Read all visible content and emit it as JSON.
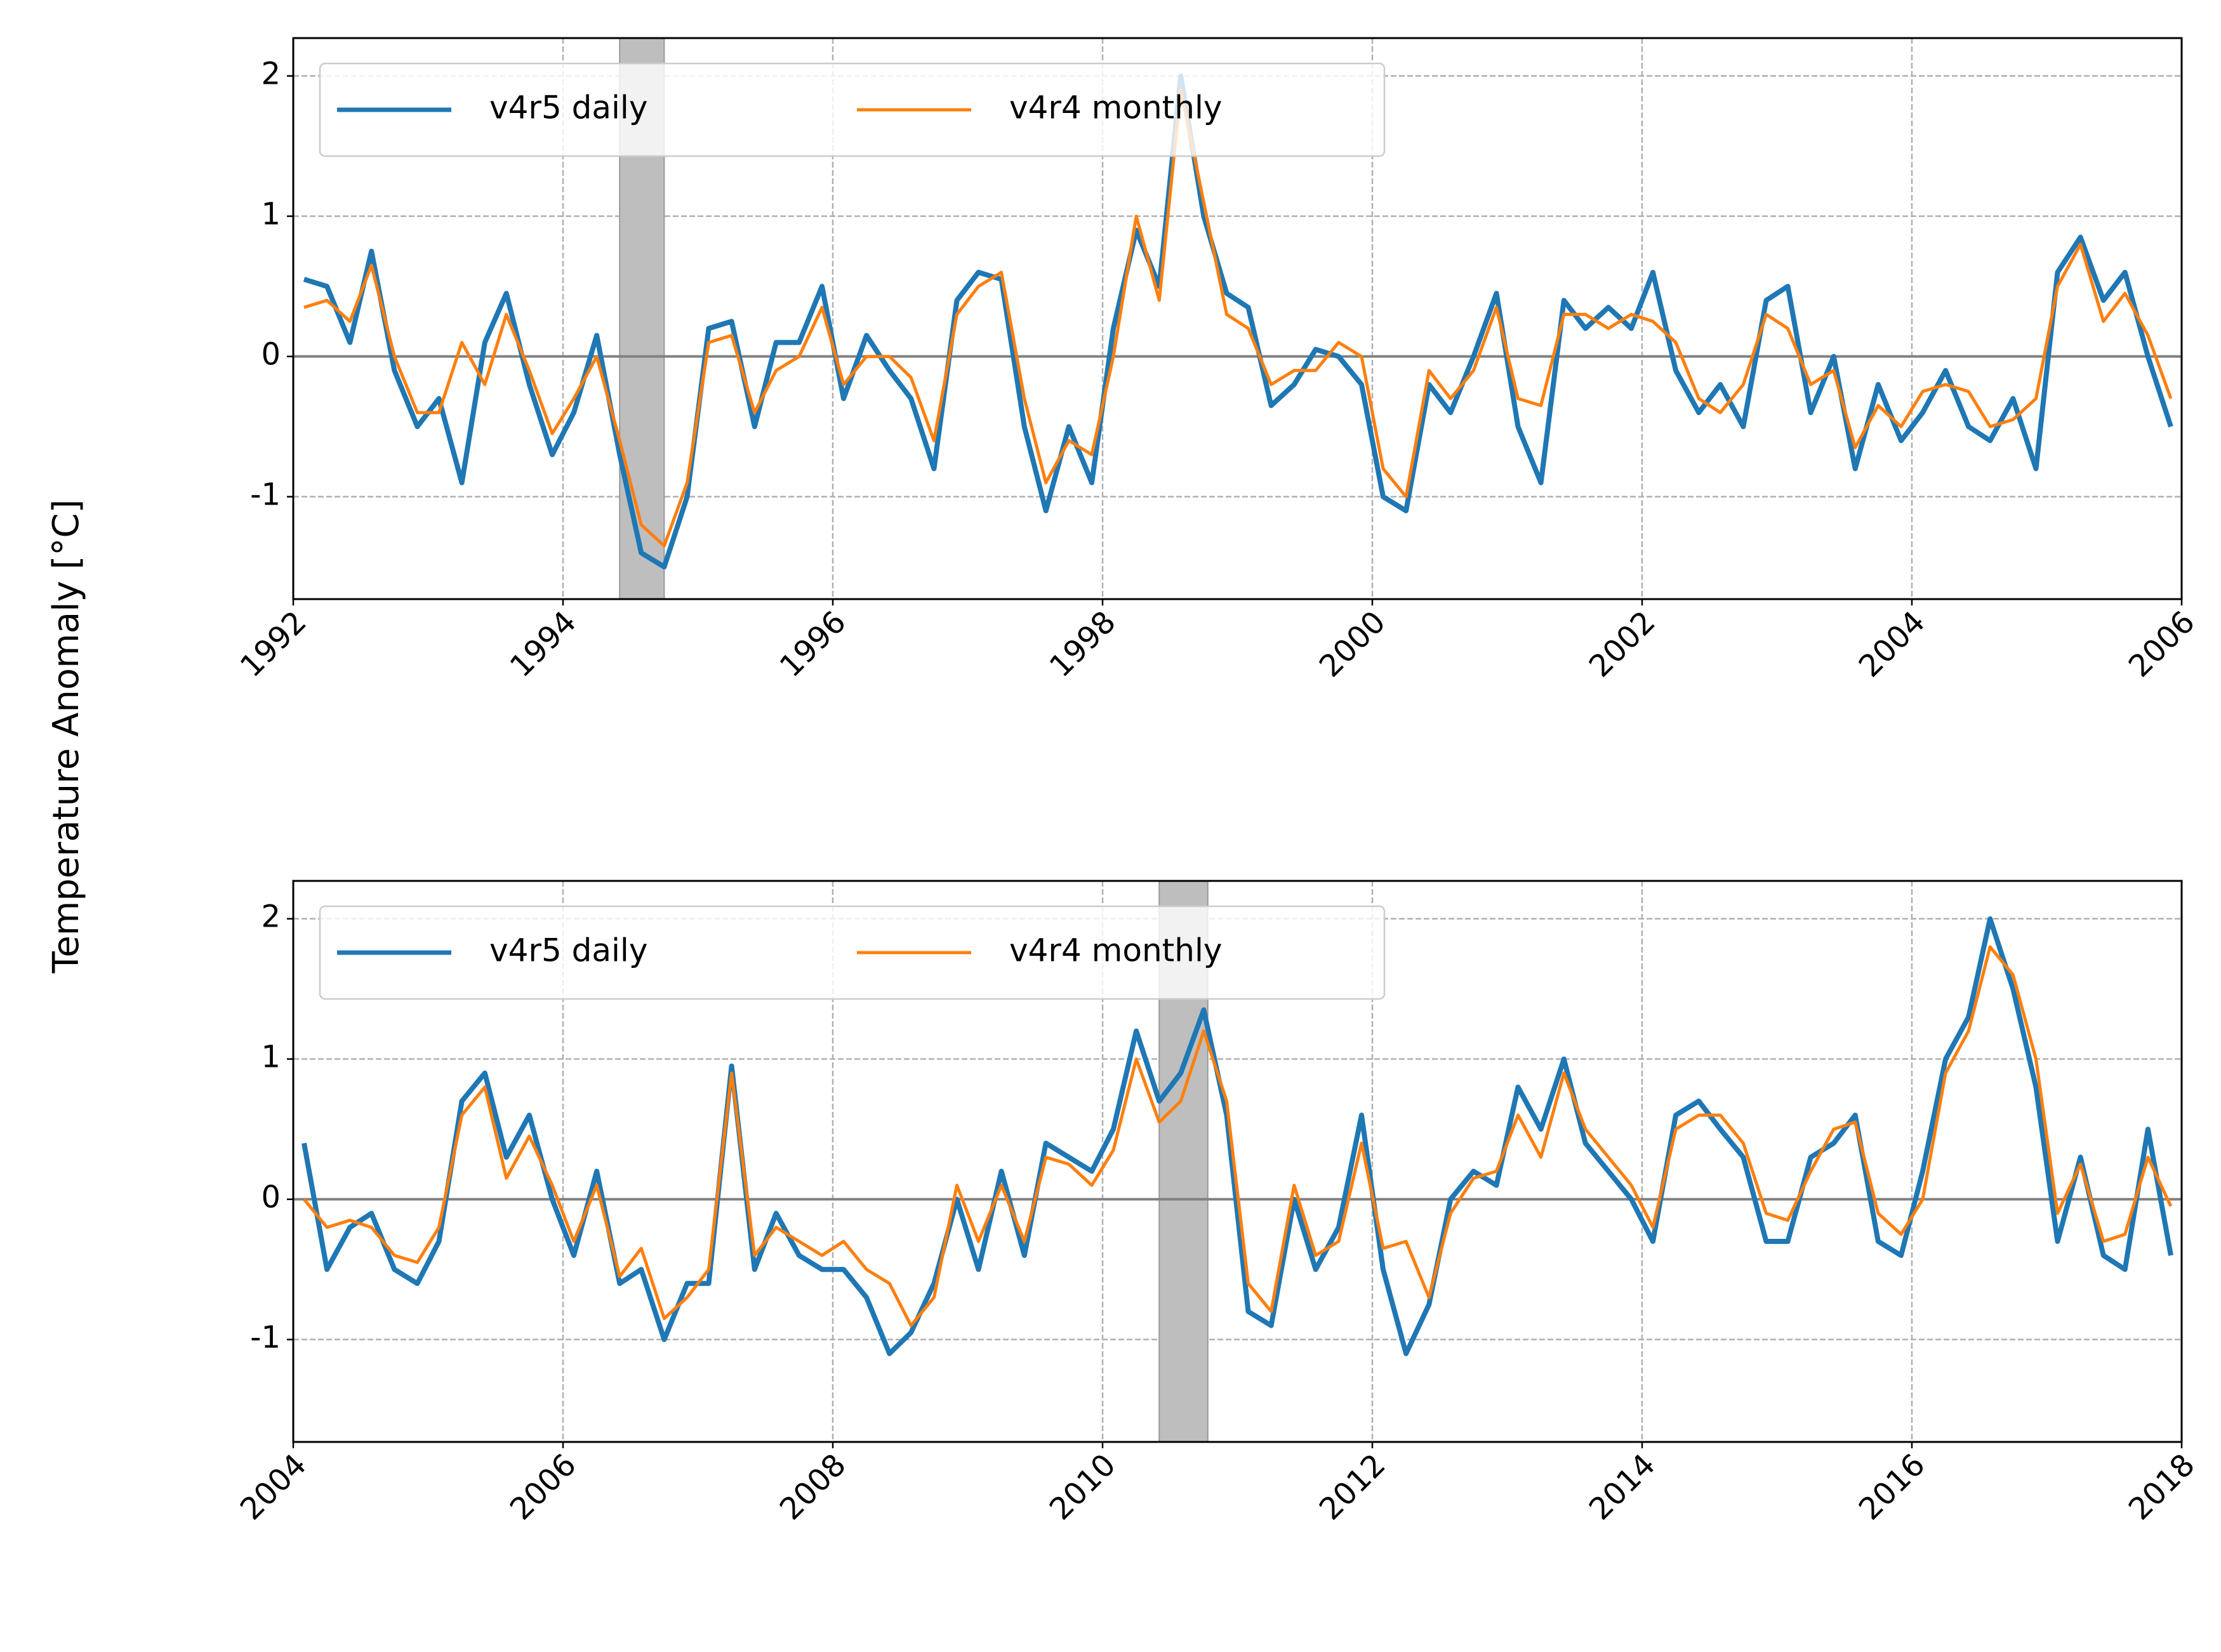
{
  "chart_data": [
    {
      "type": "line",
      "ylabel": "Temperature Anomaly [°C]",
      "x": [
        1992.08,
        1992.25,
        1992.42,
        1992.58,
        1992.75,
        1992.92,
        1993.08,
        1993.25,
        1993.42,
        1993.58,
        1993.75,
        1993.92,
        1994.08,
        1994.25,
        1994.42,
        1994.58,
        1994.75,
        1994.92,
        1995.08,
        1995.25,
        1995.42,
        1995.58,
        1995.75,
        1995.92,
        1996.08,
        1996.25,
        1996.42,
        1996.58,
        1996.75,
        1996.92,
        1997.08,
        1997.25,
        1997.42,
        1997.58,
        1997.75,
        1997.92,
        1998.08,
        1998.25,
        1998.42,
        1998.58,
        1998.75,
        1998.92,
        1999.08,
        1999.25,
        1999.42,
        1999.58,
        1999.75,
        1999.92,
        2000.08,
        2000.25,
        2000.42,
        2000.58,
        2000.75,
        2000.92,
        2001.08,
        2001.25,
        2001.42,
        2001.58,
        2001.75,
        2001.92,
        2002.08,
        2002.25,
        2002.42,
        2002.58,
        2002.75,
        2002.92,
        2003.08,
        2003.25,
        2003.42,
        2003.58,
        2003.75,
        2003.92,
        2004.08,
        2004.25,
        2004.42,
        2004.58,
        2004.75,
        2004.92,
        2005.08,
        2005.25,
        2005.42,
        2005.58,
        2005.75,
        2005.92
      ],
      "series": [
        {
          "name": "v4r5 daily",
          "color": "#1f77b4",
          "values": [
            0.55,
            0.5,
            0.1,
            0.75,
            -0.1,
            -0.5,
            -0.3,
            -0.9,
            0.1,
            0.45,
            -0.2,
            -0.7,
            -0.4,
            0.15,
            -0.7,
            -1.4,
            -1.5,
            -1.0,
            0.2,
            0.25,
            -0.5,
            0.1,
            0.1,
            0.5,
            -0.3,
            0.15,
            -0.1,
            -0.3,
            -0.8,
            0.4,
            0.6,
            0.55,
            -0.5,
            -1.1,
            -0.5,
            -0.9,
            0.2,
            0.9,
            0.5,
            2.0,
            1.0,
            0.45,
            0.35,
            -0.35,
            -0.2,
            0.05,
            0.0,
            -0.2,
            -1.0,
            -1.1,
            -0.2,
            -0.4,
            0.0,
            0.45,
            -0.5,
            -0.9,
            0.4,
            0.2,
            0.35,
            0.2,
            0.6,
            -0.1,
            -0.4,
            -0.2,
            -0.5,
            0.4,
            0.5,
            -0.4,
            0.0,
            -0.8,
            -0.2,
            -0.6,
            -0.4,
            -0.1,
            -0.5,
            -0.6,
            -0.3,
            -0.8,
            0.6,
            0.85,
            0.4,
            0.6,
            0.0,
            -0.5
          ]
        },
        {
          "name": "v4r4 monthly",
          "color": "#ff7f0e",
          "values": [
            0.35,
            0.4,
            0.25,
            0.65,
            0.0,
            -0.4,
            -0.4,
            0.1,
            -0.2,
            0.3,
            -0.1,
            -0.55,
            -0.3,
            0.0,
            -0.6,
            -1.2,
            -1.35,
            -0.9,
            0.1,
            0.15,
            -0.4,
            -0.1,
            0.0,
            0.35,
            -0.2,
            0.0,
            0.0,
            -0.15,
            -0.6,
            0.3,
            0.5,
            0.6,
            -0.3,
            -0.9,
            -0.6,
            -0.7,
            0.0,
            1.0,
            0.4,
            1.9,
            1.1,
            0.3,
            0.2,
            -0.2,
            -0.1,
            -0.1,
            0.1,
            0.0,
            -0.8,
            -1.0,
            -0.1,
            -0.3,
            -0.1,
            0.35,
            -0.3,
            -0.35,
            0.3,
            0.3,
            0.2,
            0.3,
            0.25,
            0.1,
            -0.3,
            -0.4,
            -0.2,
            0.3,
            0.2,
            -0.2,
            -0.1,
            -0.65,
            -0.35,
            -0.5,
            -0.25,
            -0.2,
            -0.25,
            -0.5,
            -0.45,
            -0.3,
            0.5,
            0.8,
            0.25,
            0.45,
            0.15,
            -0.3
          ]
        }
      ],
      "shade": [
        1994.42,
        1994.75
      ],
      "hline": 0,
      "xlim": [
        1992,
        2006
      ],
      "xticks": [
        1992,
        1994,
        1996,
        1998,
        2000,
        2002,
        2004,
        2006
      ],
      "ylim": [
        -1.73,
        2.27
      ],
      "yticks": [
        -1,
        0,
        1,
        2
      ],
      "grid": true,
      "legend": "upper left"
    },
    {
      "type": "line",
      "x": [
        2004.08,
        2004.25,
        2004.42,
        2004.58,
        2004.75,
        2004.92,
        2005.08,
        2005.25,
        2005.42,
        2005.58,
        2005.75,
        2005.92,
        2006.08,
        2006.25,
        2006.42,
        2006.58,
        2006.75,
        2006.92,
        2007.08,
        2007.25,
        2007.42,
        2007.58,
        2007.75,
        2007.92,
        2008.08,
        2008.25,
        2008.42,
        2008.58,
        2008.75,
        2008.92,
        2009.08,
        2009.25,
        2009.42,
        2009.58,
        2009.75,
        2009.92,
        2010.08,
        2010.25,
        2010.42,
        2010.58,
        2010.75,
        2010.92,
        2011.08,
        2011.25,
        2011.42,
        2011.58,
        2011.75,
        2011.92,
        2012.08,
        2012.25,
        2012.42,
        2012.58,
        2012.75,
        2012.92,
        2013.08,
        2013.25,
        2013.42,
        2013.58,
        2013.75,
        2013.92,
        2014.08,
        2014.25,
        2014.42,
        2014.58,
        2014.75,
        2014.92,
        2015.08,
        2015.25,
        2015.42,
        2015.58,
        2015.75,
        2015.92,
        2016.08,
        2016.25,
        2016.42,
        2016.58,
        2016.75,
        2016.92,
        2017.08,
        2017.25,
        2017.42,
        2017.58,
        2017.75,
        2017.92
      ],
      "series": [
        {
          "name": "v4r5 daily",
          "color": "#1f77b4",
          "values": [
            0.4,
            -0.5,
            -0.2,
            -0.1,
            -0.5,
            -0.6,
            -0.3,
            0.7,
            0.9,
            0.3,
            0.6,
            0.0,
            -0.4,
            0.2,
            -0.6,
            -0.5,
            -1.0,
            -0.6,
            -0.6,
            0.95,
            -0.5,
            -0.1,
            -0.4,
            -0.5,
            -0.5,
            -0.7,
            -1.1,
            -0.95,
            -0.6,
            0.0,
            -0.5,
            0.2,
            -0.4,
            0.4,
            0.3,
            0.2,
            0.5,
            1.2,
            0.7,
            0.9,
            1.35,
            0.6,
            -0.8,
            -0.9,
            0.0,
            -0.5,
            -0.2,
            0.6,
            -0.5,
            -1.1,
            -0.75,
            0.0,
            0.2,
            0.1,
            0.8,
            0.5,
            1.0,
            0.4,
            0.2,
            0.0,
            -0.3,
            0.6,
            0.7,
            0.5,
            0.3,
            -0.3,
            -0.3,
            0.3,
            0.4,
            0.6,
            -0.3,
            -0.4,
            0.2,
            1.0,
            1.3,
            2.0,
            1.5,
            0.8,
            -0.3,
            0.3,
            -0.4,
            -0.5,
            0.5,
            -0.4
          ]
        },
        {
          "name": "v4r4 monthly",
          "color": "#ff7f0e",
          "values": [
            0.0,
            -0.2,
            -0.15,
            -0.2,
            -0.4,
            -0.45,
            -0.2,
            0.6,
            0.8,
            0.15,
            0.45,
            0.1,
            -0.3,
            0.1,
            -0.55,
            -0.35,
            -0.85,
            -0.7,
            -0.5,
            0.9,
            -0.4,
            -0.2,
            -0.3,
            -0.4,
            -0.3,
            -0.5,
            -0.6,
            -0.9,
            -0.7,
            0.1,
            -0.3,
            0.1,
            -0.3,
            0.3,
            0.25,
            0.1,
            0.35,
            1.0,
            0.55,
            0.7,
            1.2,
            0.7,
            -0.6,
            -0.8,
            0.1,
            -0.4,
            -0.3,
            0.4,
            -0.35,
            -0.3,
            -0.7,
            -0.1,
            0.15,
            0.2,
            0.6,
            0.3,
            0.9,
            0.5,
            0.3,
            0.1,
            -0.2,
            0.5,
            0.6,
            0.6,
            0.4,
            -0.1,
            -0.15,
            0.2,
            0.5,
            0.55,
            -0.1,
            -0.25,
            0.0,
            0.9,
            1.2,
            1.8,
            1.6,
            1.0,
            -0.1,
            0.25,
            -0.3,
            -0.25,
            0.3,
            -0.05
          ]
        }
      ],
      "shade": [
        2010.42,
        2010.78
      ],
      "hline": 0,
      "xlim": [
        2004,
        2018
      ],
      "xticks": [
        2004,
        2006,
        2008,
        2010,
        2012,
        2014,
        2016,
        2018
      ],
      "ylim": [
        -1.73,
        2.27
      ],
      "yticks": [
        -1,
        0,
        1,
        2
      ],
      "grid": true,
      "legend": "upper left"
    }
  ]
}
